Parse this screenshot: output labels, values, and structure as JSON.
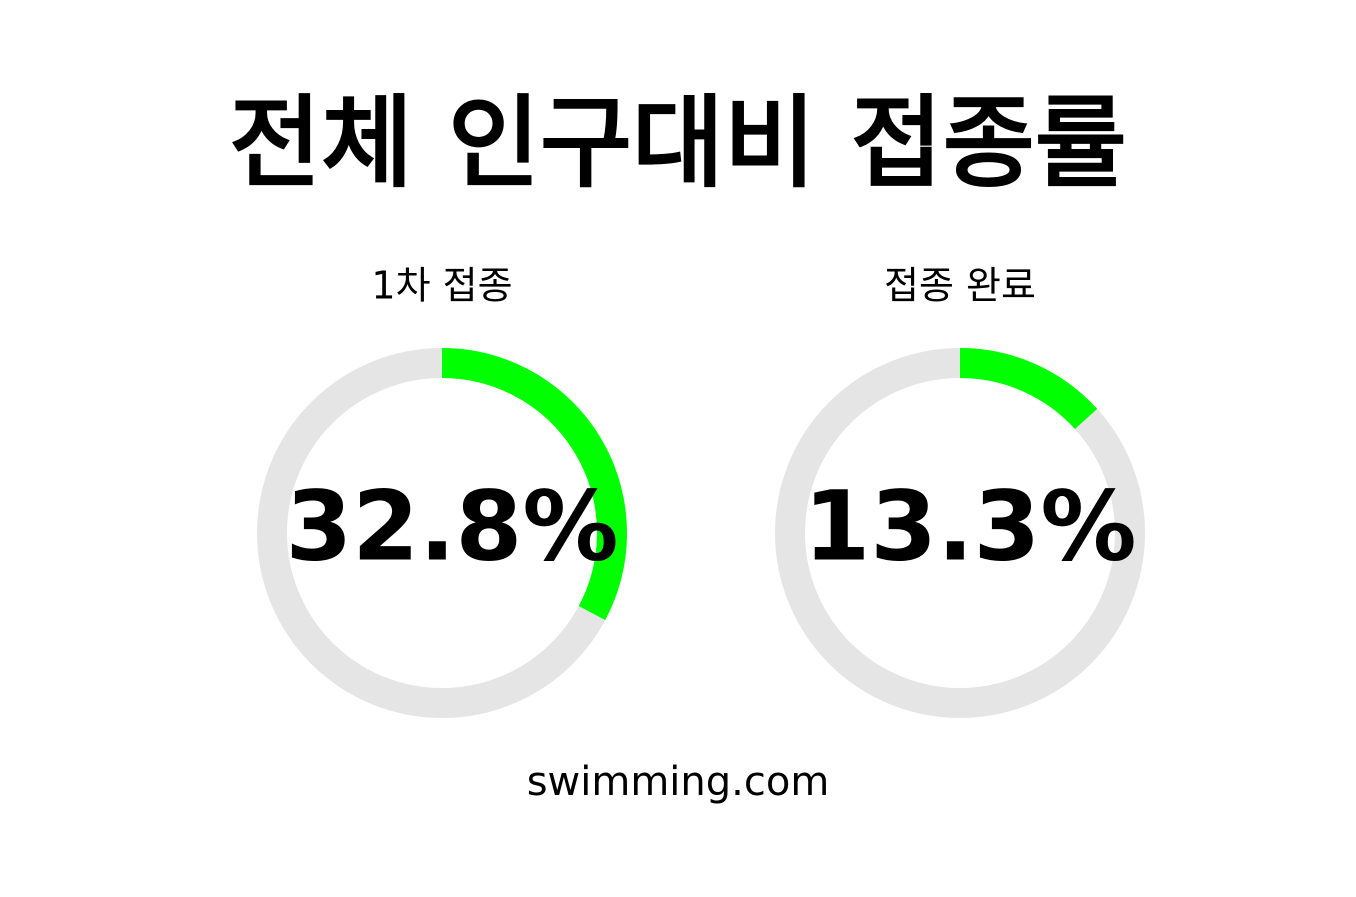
{
  "title": "전체 인구대비 접종률",
  "chart_data": [
    {
      "type": "donut",
      "label": "1차 접종",
      "values": [
        32.8
      ],
      "value_labels": [
        "32.8%"
      ],
      "ylim": [
        0,
        100
      ],
      "color": "#00ff00",
      "track_color": "#e5e5e5"
    },
    {
      "type": "donut",
      "label": "접종 완료",
      "values": [
        13.3
      ],
      "value_labels": [
        "13.3%"
      ],
      "ylim": [
        0,
        100
      ],
      "color": "#00ff00",
      "track_color": "#e5e5e5"
    }
  ],
  "footer": "swimming.com"
}
